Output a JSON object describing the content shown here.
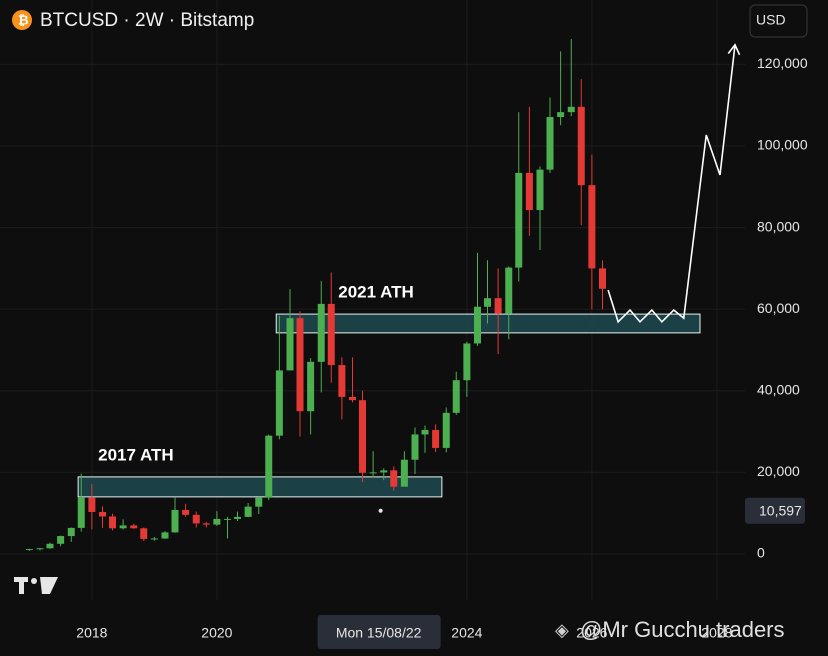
{
  "chart_data": {
    "type": "candlestick",
    "title": "BTCUSD · 2W · Bitstamp",
    "currency_button": "USD",
    "watermark": "@Mr Gucchu traders",
    "x": [
      2017.0,
      2017.17,
      2017.33,
      2017.5,
      2017.67,
      2017.83,
      2018.0,
      2018.17,
      2018.33,
      2018.5,
      2018.67,
      2018.83,
      2019.0,
      2019.17,
      2019.33,
      2019.5,
      2019.67,
      2019.83,
      2020.0,
      2020.17,
      2020.33,
      2020.5,
      2020.67,
      2020.83,
      2021.0,
      2021.17,
      2021.33,
      2021.5,
      2021.67,
      2021.83,
      2022.0,
      2022.17,
      2022.33,
      2022.5,
      2022.67,
      2022.83,
      2023.0,
      2023.17,
      2023.33,
      2023.5,
      2023.67,
      2023.83,
      2024.0,
      2024.17,
      2024.33,
      2024.5,
      2024.67,
      2024.83,
      2025.0,
      2025.17,
      2025.33,
      2025.5,
      2025.67,
      2025.83,
      2026.0,
      2026.17
    ],
    "open": [
      1000,
      1200,
      1400,
      2500,
      4400,
      6400,
      13800,
      10300,
      9200,
      6300,
      7000,
      6300,
      3700,
      3800,
      5300,
      10800,
      9600,
      7500,
      7200,
      8600,
      8600,
      9100,
      11600,
      13800,
      29000,
      45000,
      57800,
      35000,
      47100,
      61300,
      46300,
      38500,
      37700,
      19900,
      20000,
      20500,
      16500,
      23100,
      29300,
      30400,
      26000,
      34600,
      42600,
      51600,
      60600,
      62700,
      58900,
      70200,
      93400,
      84300,
      94200,
      107100,
      108300,
      109600,
      90400,
      70000
    ],
    "high": [
      1300,
      1500,
      2800,
      4500,
      6500,
      19700,
      17200,
      11700,
      9900,
      8500,
      7400,
      6500,
      4200,
      5600,
      13800,
      12300,
      10400,
      7900,
      10500,
      9100,
      10400,
      12500,
      14000,
      29300,
      58400,
      64900,
      59500,
      48000,
      66900,
      69000,
      48200,
      48200,
      40000,
      25200,
      21000,
      21500,
      25200,
      31000,
      31500,
      31800,
      35900,
      44700,
      52000,
      73800,
      72000,
      70000,
      70500,
      108300,
      109600,
      95000,
      111900,
      123200,
      126200,
      116400,
      97900,
      72000
    ],
    "low": [
      800,
      900,
      1300,
      1900,
      3000,
      5500,
      6000,
      6400,
      5800,
      6000,
      6200,
      3200,
      3300,
      3700,
      5200,
      9100,
      6500,
      6500,
      6900,
      3800,
      8100,
      9000,
      9800,
      13200,
      28100,
      45000,
      28800,
      29300,
      39600,
      42000,
      33000,
      37200,
      17600,
      18700,
      18100,
      15500,
      16500,
      19600,
      24800,
      25000,
      24900,
      34100,
      38500,
      51000,
      56500,
      49000,
      52600,
      66800,
      78000,
      74500,
      93400,
      105100,
      107300,
      80600,
      60000,
      60000
    ],
    "close": [
      1200,
      1400,
      2500,
      4400,
      6400,
      13800,
      10300,
      9200,
      6300,
      7000,
      6300,
      3700,
      3800,
      5300,
      10800,
      9600,
      7500,
      7200,
      8600,
      8600,
      9100,
      11600,
      13800,
      29000,
      45000,
      57800,
      35000,
      47100,
      61300,
      46300,
      38500,
      37700,
      19900,
      20000,
      20500,
      16500,
      23100,
      29300,
      30400,
      26000,
      34600,
      42600,
      51600,
      60600,
      62700,
      58900,
      70200,
      93400,
      84300,
      94200,
      107100,
      108300,
      109600,
      90400,
      70000,
      65000
    ],
    "up_color": "#4caf50",
    "down_color": "#e53935",
    "xlim": [
      2016.53,
      2028.45
    ],
    "xticks": [
      2018,
      2020,
      2024,
      2026,
      2028
    ],
    "ylim": [
      -11275,
      135784
    ],
    "yticks": [
      0,
      {
        "value": 20000,
        "label": "20,000"
      },
      {
        "value": 40000,
        "label": "40,000"
      },
      {
        "value": 60000,
        "label": "60,000"
      },
      {
        "value": 80000,
        "label": "80,000"
      },
      {
        "value": 100000,
        "label": "100,000"
      },
      {
        "value": 120000,
        "label": "120,000"
      }
    ],
    "grid": true,
    "zones": [
      {
        "label": "2017 ATH",
        "x": [
          2017.78,
          2023.6
        ],
        "y": [
          14000,
          18900
        ],
        "color": "#1d4a50"
      },
      {
        "label": "2021 ATH",
        "x": [
          2020.95,
          2027.73
        ],
        "y": [
          54200,
          58800
        ],
        "color": "#1d4a50"
      }
    ],
    "projection": {
      "color": "#ffffff",
      "x": [
        2026.26,
        2026.42,
        2026.61,
        2026.77,
        2026.96,
        2027.12,
        2027.31,
        2027.47,
        2027.83,
        2028.05,
        2028.29
      ],
      "y": [
        64700,
        56900,
        59800,
        56900,
        59800,
        56900,
        59800,
        57800,
        102700,
        92900,
        124800
      ]
    },
    "crosshair": {
      "x": 2022.62,
      "date_label": "Mon 15/08/22",
      "y": 10597,
      "y_label": "10,597"
    }
  }
}
